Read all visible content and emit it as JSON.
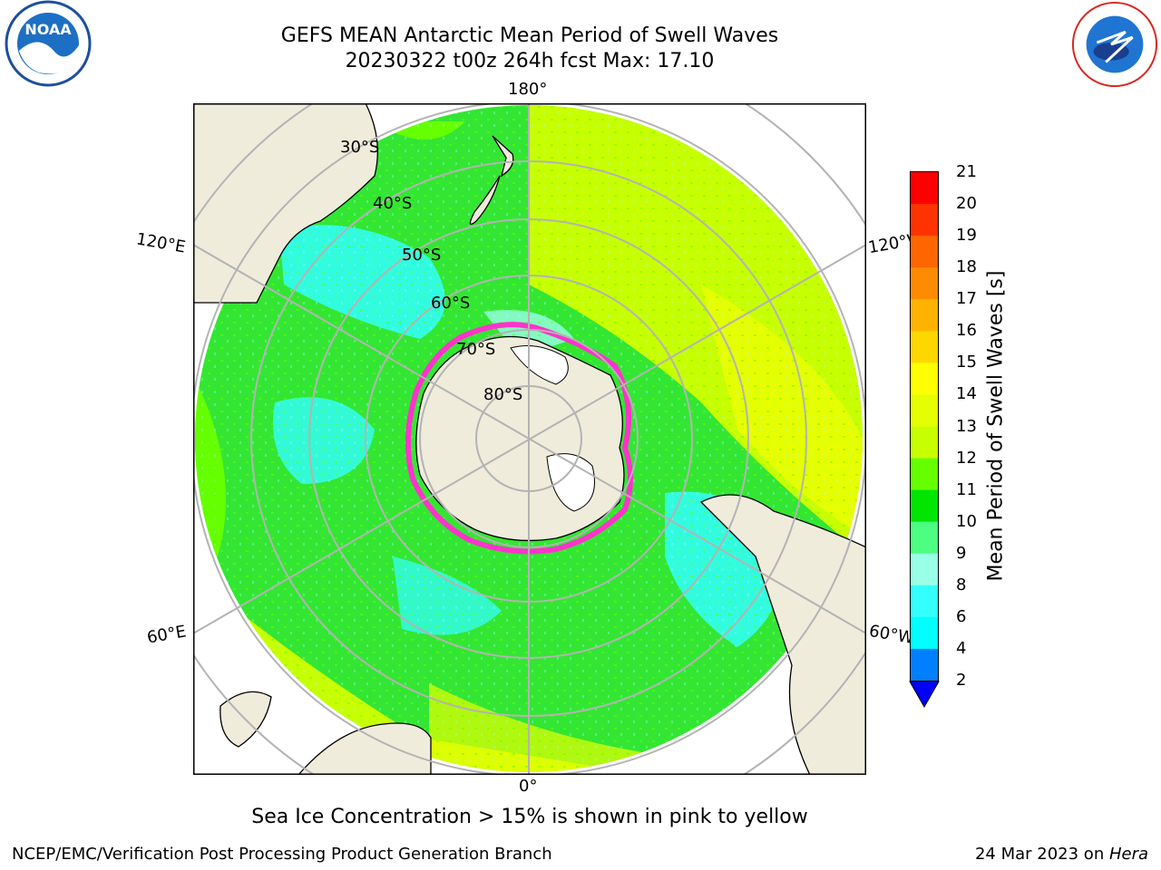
{
  "title": {
    "line1": "GEFS MEAN Antarctic Mean Period of Swell Waves",
    "line2": "20230322 t00z 264h fcst   Max: 17.10"
  },
  "map": {
    "projection": "south-polar-stereographic",
    "lon_labels": {
      "top": "180°",
      "bottom": "0°",
      "left_upper": "120°E",
      "left_lower": "60°E",
      "right_upper": "120°W",
      "right_lower": "60°W"
    },
    "lat_labels": [
      "30°S",
      "40°S",
      "50°S",
      "60°S",
      "70°S",
      "80°S"
    ],
    "colors": {
      "land": "#efecdc",
      "ice": "#ff33cc",
      "grid": "#b3b3b3"
    }
  },
  "colorbar": {
    "label": "Mean Period of Swell Waves [s]",
    "ticks": [
      "21",
      "20",
      "19",
      "18",
      "17",
      "16",
      "15",
      "14",
      "13",
      "12",
      "11",
      "10",
      "9",
      "8",
      "6",
      "4",
      "2"
    ],
    "colors": [
      "#ff0000",
      "#ff3300",
      "#ff6600",
      "#ff8c00",
      "#ffb300",
      "#ffd700",
      "#ffff00",
      "#e6ff00",
      "#c8ff00",
      "#66ff00",
      "#00e600",
      "#4dff80",
      "#99ffe6",
      "#33ffff",
      "#00ffff",
      "#0080ff",
      "#0000ff"
    ]
  },
  "caption": "Sea Ice Concentration > 15% is shown in pink to yellow",
  "footer": {
    "left": "NCEP/EMC/Verification Post Processing Product Generation Branch",
    "right_date": "24 Mar 2023 on ",
    "right_host": "Hera"
  },
  "logos": {
    "left": "NOAA",
    "right": "NATIONAL WEATHER SERVICE"
  }
}
